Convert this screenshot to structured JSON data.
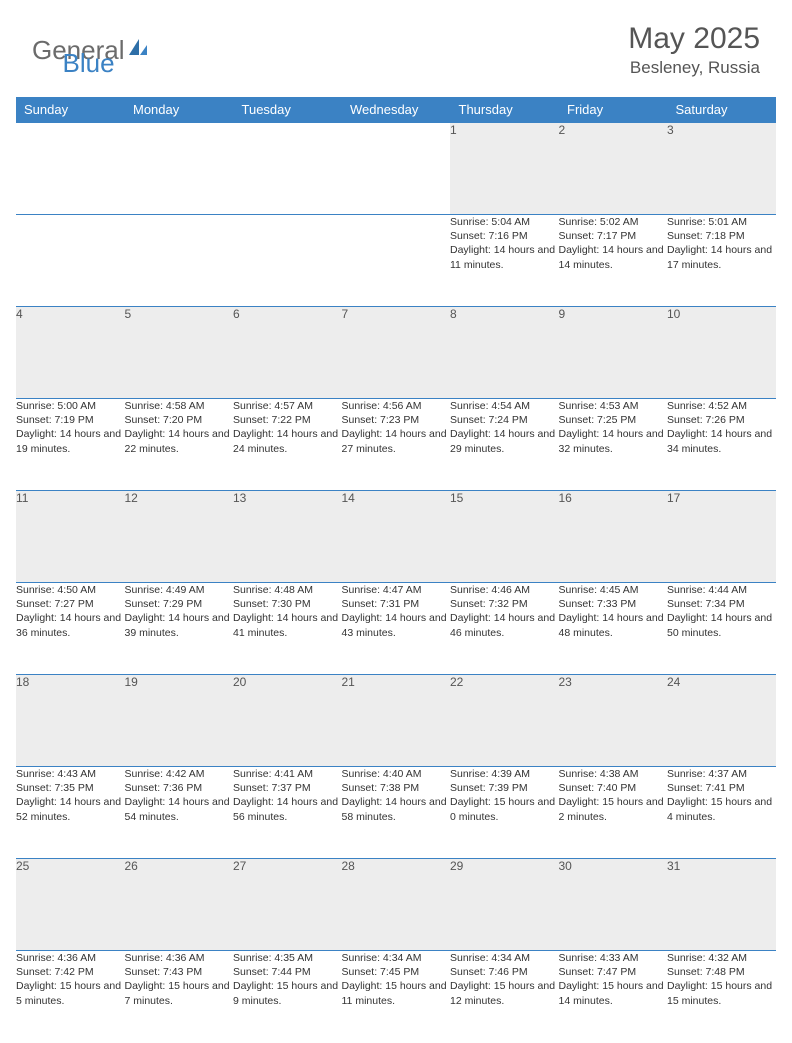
{
  "brand": {
    "part1": "General",
    "part2": "Blue"
  },
  "title": "May 2025",
  "location": "Besleney, Russia",
  "columns": [
    "Sunday",
    "Monday",
    "Tuesday",
    "Wednesday",
    "Thursday",
    "Friday",
    "Saturday"
  ],
  "colors": {
    "header_bg": "#3b82c4",
    "header_text": "#ffffff",
    "daynum_bg": "#ededed",
    "border": "#3b82c4",
    "text": "#333333",
    "brand_gray": "#6b6b6b",
    "brand_blue": "#3b82c4"
  },
  "weeks": [
    [
      {
        "n": "",
        "sr": "",
        "ss": "",
        "dl": ""
      },
      {
        "n": "",
        "sr": "",
        "ss": "",
        "dl": ""
      },
      {
        "n": "",
        "sr": "",
        "ss": "",
        "dl": ""
      },
      {
        "n": "",
        "sr": "",
        "ss": "",
        "dl": ""
      },
      {
        "n": "1",
        "sr": "Sunrise: 5:04 AM",
        "ss": "Sunset: 7:16 PM",
        "dl": "Daylight: 14 hours and 11 minutes."
      },
      {
        "n": "2",
        "sr": "Sunrise: 5:02 AM",
        "ss": "Sunset: 7:17 PM",
        "dl": "Daylight: 14 hours and 14 minutes."
      },
      {
        "n": "3",
        "sr": "Sunrise: 5:01 AM",
        "ss": "Sunset: 7:18 PM",
        "dl": "Daylight: 14 hours and 17 minutes."
      }
    ],
    [
      {
        "n": "4",
        "sr": "Sunrise: 5:00 AM",
        "ss": "Sunset: 7:19 PM",
        "dl": "Daylight: 14 hours and 19 minutes."
      },
      {
        "n": "5",
        "sr": "Sunrise: 4:58 AM",
        "ss": "Sunset: 7:20 PM",
        "dl": "Daylight: 14 hours and 22 minutes."
      },
      {
        "n": "6",
        "sr": "Sunrise: 4:57 AM",
        "ss": "Sunset: 7:22 PM",
        "dl": "Daylight: 14 hours and 24 minutes."
      },
      {
        "n": "7",
        "sr": "Sunrise: 4:56 AM",
        "ss": "Sunset: 7:23 PM",
        "dl": "Daylight: 14 hours and 27 minutes."
      },
      {
        "n": "8",
        "sr": "Sunrise: 4:54 AM",
        "ss": "Sunset: 7:24 PM",
        "dl": "Daylight: 14 hours and 29 minutes."
      },
      {
        "n": "9",
        "sr": "Sunrise: 4:53 AM",
        "ss": "Sunset: 7:25 PM",
        "dl": "Daylight: 14 hours and 32 minutes."
      },
      {
        "n": "10",
        "sr": "Sunrise: 4:52 AM",
        "ss": "Sunset: 7:26 PM",
        "dl": "Daylight: 14 hours and 34 minutes."
      }
    ],
    [
      {
        "n": "11",
        "sr": "Sunrise: 4:50 AM",
        "ss": "Sunset: 7:27 PM",
        "dl": "Daylight: 14 hours and 36 minutes."
      },
      {
        "n": "12",
        "sr": "Sunrise: 4:49 AM",
        "ss": "Sunset: 7:29 PM",
        "dl": "Daylight: 14 hours and 39 minutes."
      },
      {
        "n": "13",
        "sr": "Sunrise: 4:48 AM",
        "ss": "Sunset: 7:30 PM",
        "dl": "Daylight: 14 hours and 41 minutes."
      },
      {
        "n": "14",
        "sr": "Sunrise: 4:47 AM",
        "ss": "Sunset: 7:31 PM",
        "dl": "Daylight: 14 hours and 43 minutes."
      },
      {
        "n": "15",
        "sr": "Sunrise: 4:46 AM",
        "ss": "Sunset: 7:32 PM",
        "dl": "Daylight: 14 hours and 46 minutes."
      },
      {
        "n": "16",
        "sr": "Sunrise: 4:45 AM",
        "ss": "Sunset: 7:33 PM",
        "dl": "Daylight: 14 hours and 48 minutes."
      },
      {
        "n": "17",
        "sr": "Sunrise: 4:44 AM",
        "ss": "Sunset: 7:34 PM",
        "dl": "Daylight: 14 hours and 50 minutes."
      }
    ],
    [
      {
        "n": "18",
        "sr": "Sunrise: 4:43 AM",
        "ss": "Sunset: 7:35 PM",
        "dl": "Daylight: 14 hours and 52 minutes."
      },
      {
        "n": "19",
        "sr": "Sunrise: 4:42 AM",
        "ss": "Sunset: 7:36 PM",
        "dl": "Daylight: 14 hours and 54 minutes."
      },
      {
        "n": "20",
        "sr": "Sunrise: 4:41 AM",
        "ss": "Sunset: 7:37 PM",
        "dl": "Daylight: 14 hours and 56 minutes."
      },
      {
        "n": "21",
        "sr": "Sunrise: 4:40 AM",
        "ss": "Sunset: 7:38 PM",
        "dl": "Daylight: 14 hours and 58 minutes."
      },
      {
        "n": "22",
        "sr": "Sunrise: 4:39 AM",
        "ss": "Sunset: 7:39 PM",
        "dl": "Daylight: 15 hours and 0 minutes."
      },
      {
        "n": "23",
        "sr": "Sunrise: 4:38 AM",
        "ss": "Sunset: 7:40 PM",
        "dl": "Daylight: 15 hours and 2 minutes."
      },
      {
        "n": "24",
        "sr": "Sunrise: 4:37 AM",
        "ss": "Sunset: 7:41 PM",
        "dl": "Daylight: 15 hours and 4 minutes."
      }
    ],
    [
      {
        "n": "25",
        "sr": "Sunrise: 4:36 AM",
        "ss": "Sunset: 7:42 PM",
        "dl": "Daylight: 15 hours and 5 minutes."
      },
      {
        "n": "26",
        "sr": "Sunrise: 4:36 AM",
        "ss": "Sunset: 7:43 PM",
        "dl": "Daylight: 15 hours and 7 minutes."
      },
      {
        "n": "27",
        "sr": "Sunrise: 4:35 AM",
        "ss": "Sunset: 7:44 PM",
        "dl": "Daylight: 15 hours and 9 minutes."
      },
      {
        "n": "28",
        "sr": "Sunrise: 4:34 AM",
        "ss": "Sunset: 7:45 PM",
        "dl": "Daylight: 15 hours and 11 minutes."
      },
      {
        "n": "29",
        "sr": "Sunrise: 4:34 AM",
        "ss": "Sunset: 7:46 PM",
        "dl": "Daylight: 15 hours and 12 minutes."
      },
      {
        "n": "30",
        "sr": "Sunrise: 4:33 AM",
        "ss": "Sunset: 7:47 PM",
        "dl": "Daylight: 15 hours and 14 minutes."
      },
      {
        "n": "31",
        "sr": "Sunrise: 4:32 AM",
        "ss": "Sunset: 7:48 PM",
        "dl": "Daylight: 15 hours and 15 minutes."
      }
    ]
  ]
}
